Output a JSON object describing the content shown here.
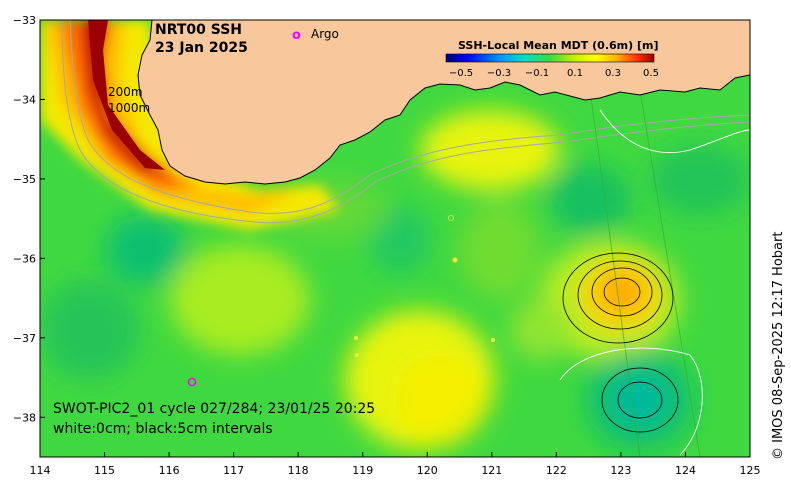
{
  "title": {
    "product": "NRT00 SSH",
    "date": "23 Jan 2025"
  },
  "legend": {
    "argo_symbol": "o",
    "argo_label": "Argo",
    "colour_argo": "#ff00ff"
  },
  "bathymetry_labels": [
    "200m",
    "1000m"
  ],
  "colorbar": {
    "title": "SSH-Local Mean MDT (0.6m) [m]",
    "ticks": [
      "−0.5",
      "−0.3",
      "−0.1",
      "0.1",
      "0.3",
      "0.5"
    ],
    "colors": [
      "#00007f",
      "#0000ff",
      "#0080ff",
      "#00ffff",
      "#00c080",
      "#20c020",
      "#80e020",
      "#e0f000",
      "#ffff00",
      "#ffc000",
      "#ff6000",
      "#ff0000",
      "#9a0000"
    ]
  },
  "info": {
    "line1": "SWOT-PIC2_01 cycle 027/284; 23/01/25 20:25",
    "line2": "white:0cm; black:5cm intervals"
  },
  "credit": "© IMOS 08-Sep-2025 12:17 Hobart",
  "axes": {
    "x_ticks": [
      "114",
      "115",
      "116",
      "117",
      "118",
      "119",
      "120",
      "121",
      "122",
      "123",
      "124",
      "125"
    ],
    "y_ticks": [
      "−33",
      "−34",
      "−35",
      "−36",
      "−37",
      "−38"
    ],
    "lon_range": [
      114,
      125
    ],
    "lat_range": [
      -38.5,
      -33
    ]
  },
  "colours": {
    "land": "#f8c89c",
    "ocean_base": "#40d840",
    "coast": "#000000",
    "isobath": "#a8a8a8"
  }
}
